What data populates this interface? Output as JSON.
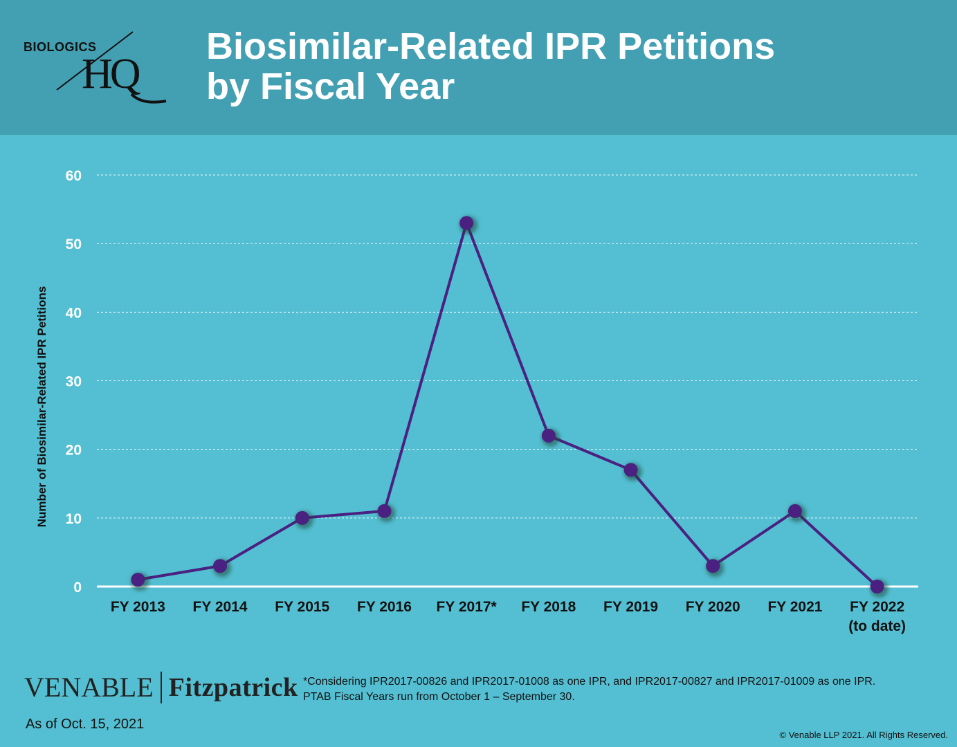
{
  "header": {
    "logo_top": "BIOLOGICS",
    "logo_main": "HQ",
    "title_line1": "Biosimilar-Related IPR Petitions",
    "title_line2": "by Fiscal Year"
  },
  "colors": {
    "header_bg": "#43a0b3",
    "page_bg": "#54bfd2",
    "series": "#4a2080",
    "text": "#ffffff"
  },
  "chart_data": {
    "type": "line",
    "title": "Biosimilar-Related IPR Petitions by Fiscal Year",
    "xlabel": "",
    "ylabel": "Number  of Biosimilar-Related  IPR Petitions",
    "categories": [
      [
        "FY 2013"
      ],
      [
        "FY 2014"
      ],
      [
        "FY 2015"
      ],
      [
        "FY 2016"
      ],
      [
        "FY 2017*"
      ],
      [
        "FY 2018"
      ],
      [
        "FY 2019"
      ],
      [
        "FY 2020"
      ],
      [
        "FY 2021"
      ],
      [
        "FY 2022",
        "(to date)"
      ]
    ],
    "values": [
      1,
      3,
      10,
      11,
      53,
      22,
      17,
      3,
      11,
      0
    ],
    "ylim": [
      0,
      60
    ],
    "yticks": [
      "0",
      "10",
      "20",
      "30",
      "40",
      "50",
      "60"
    ],
    "grid": true,
    "legend": "none"
  },
  "footer": {
    "brand_left": "VENABLE",
    "brand_right": "Fitzpatrick",
    "as_of": "As of Oct. 15, 2021",
    "footnote_line1": "*Considering IPR2017-00826 and IPR2017-01008 as one IPR, and IPR2017-00827 and IPR2017-01009 as one IPR.",
    "footnote_line2": "PTAB Fiscal Years run from October 1 – September 30.",
    "copyright": "© Venable LLP 2021. All Rights Reserved."
  }
}
